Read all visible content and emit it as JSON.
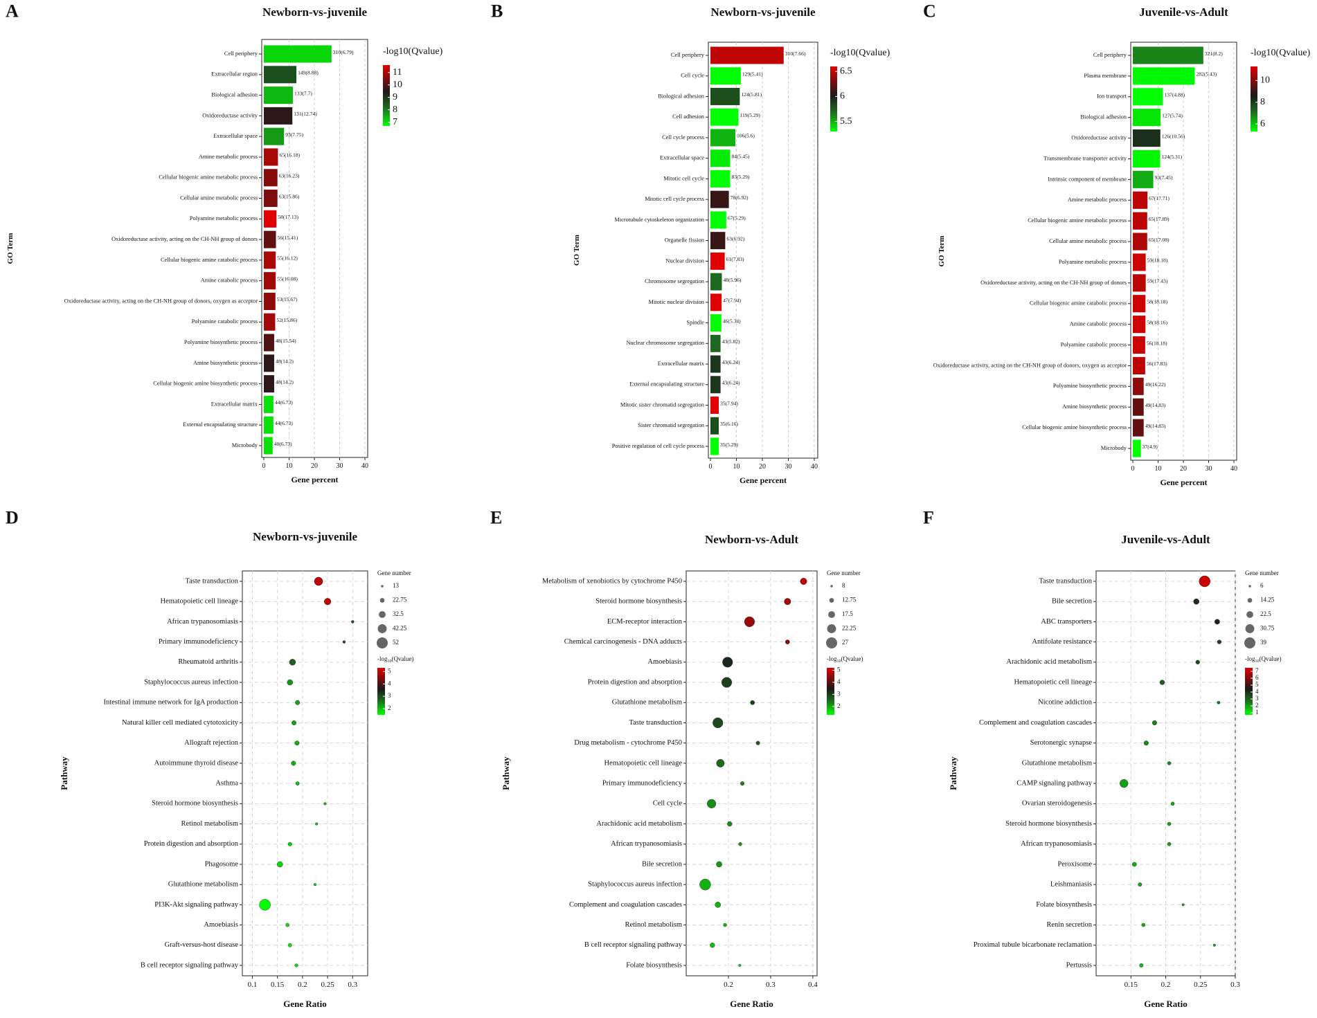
{
  "gradient_colors": {
    "high": "#e00000",
    "mid": "#1a1a1a",
    "mid2": "#1f6a1f",
    "low": "#00ff00"
  },
  "axis_common": {
    "bar_xlabel": "Gene percent",
    "bar_ylabel": "GO Term",
    "dot_xlabel": "Gene Ratio",
    "dot_ylabel": "Pathway",
    "size_legend_title": "Gene number"
  },
  "chart_data": [
    {
      "type": "bar",
      "panel_label": "A",
      "title": "Newborn-vs-juvenile",
      "xlim": [
        0,
        40
      ],
      "xticks": [
        "0",
        "10",
        "20",
        "30",
        "40"
      ],
      "legend_title": "-log10(Qvalue)",
      "qlim": [
        6.7,
        11.6
      ],
      "legend_ticks": [
        {
          "v": 11,
          "t": "11"
        },
        {
          "v": 10,
          "t": "10"
        },
        {
          "v": 9,
          "t": "9"
        },
        {
          "v": 8,
          "t": "8"
        },
        {
          "v": 7,
          "t": "7"
        }
      ],
      "categories": [
        "Cell periphery",
        "Extracellular region",
        "Biological adhesion",
        "Oxidoreductase activity",
        "Extracellular space",
        "Amine metabolic process",
        "Cellular biogenic amine metabolic process",
        "Cellular amine metabolic process",
        "Polyamine metabolic process",
        "Oxidoreductase activity, acting on the CH-NH group of donors",
        "Cellular biogenic amine catabolic process",
        "Amine catabolic process",
        "Oxidoreductase activity, acting on the CH-NH group of donors, oxygen as acceptor",
        "Polyamine catabolic process",
        "Polyamine biosynthetic process",
        "Amine biosynthetic process",
        "Cellular biogenic amine biosynthetic process",
        "Extracellular matrix",
        "External encapsulating structure",
        "Microbody"
      ],
      "values": [
        26.8,
        12.9,
        11.5,
        11.3,
        8.0,
        5.6,
        5.4,
        5.4,
        5.0,
        4.8,
        4.7,
        4.7,
        4.6,
        4.5,
        4.1,
        4.1,
        4.1,
        3.8,
        3.8,
        3.5
      ],
      "labels": [
        "310(6.79)",
        "149(8.88)",
        "133(7.7)",
        "131(12.74)",
        "93(7.75)",
        "65(16.18)",
        "63(16.23)",
        "63(15.86)",
        "58(17.13)",
        "56(15.41)",
        "55(16.12)",
        "55(16.08)",
        "53(15.67)",
        "52(15.86)",
        "48(15.54)",
        "48(14.2)",
        "48(14.2)",
        "44(6.73)",
        "44(6.73)",
        "40(6.73)"
      ],
      "qvalues": [
        7.1,
        8.6,
        7.4,
        9.6,
        7.7,
        11.0,
        10.6,
        10.5,
        11.6,
        10.2,
        11.0,
        10.9,
        10.7,
        10.9,
        10.0,
        9.6,
        9.6,
        7.0,
        7.0,
        7.0
      ]
    },
    {
      "type": "bar",
      "panel_label": "B",
      "title": "Newborn-vs-juvenile",
      "xlim": [
        0,
        40
      ],
      "xticks": [
        "0",
        "10",
        "20",
        "30",
        "40"
      ],
      "legend_title": "-log10(Qvalue)",
      "qlim": [
        5.3,
        6.6
      ],
      "legend_ticks": [
        {
          "v": 6.5,
          "t": "6.5"
        },
        {
          "v": 6,
          "t": "6"
        },
        {
          "v": 5.5,
          "t": "5.5"
        }
      ],
      "categories": [
        "Cell periphery",
        "Cell cycle",
        "Biological adhesion",
        "Cell adhesion",
        "Cell cycle process",
        "Extracellular space",
        "Mitotic cell cycle",
        "Mitotic cell cycle process",
        "Microtubule cytoskeleton organization",
        "Organelle fission",
        "Nuclear division",
        "Chromosome segregation",
        "Mitotic nuclear division",
        "Spindle",
        "Nuclear chromosome segregation",
        "Extracellular matrix",
        "External encapsulating structure",
        "Mitotic sister chromatid segregation",
        "Sister chromatid segregation",
        "Positive regulation of cell cycle process"
      ],
      "values": [
        28.2,
        11.7,
        11.3,
        10.8,
        9.6,
        7.6,
        7.6,
        7.1,
        6.1,
        5.7,
        5.5,
        4.4,
        4.3,
        4.2,
        3.9,
        3.9,
        3.9,
        3.2,
        3.2,
        3.2
      ],
      "labels": [
        "310(7.66)",
        "129(5.41)",
        "124(5.81)",
        "119(5.29)",
        "106(5.6)",
        "84(5.45)",
        "83(5.29)",
        "78(6.92)",
        "67(5.29)",
        "63(6.92)",
        "61(7.83)",
        "48(5.96)",
        "47(7.94)",
        "46(5.34)",
        "43(5.82)",
        "43(6.24)",
        "43(6.24)",
        "35(7.94)",
        "35(6.16)",
        "35(5.29)"
      ],
      "qvalues": [
        6.5,
        5.3,
        5.8,
        5.3,
        5.5,
        5.35,
        5.3,
        6.1,
        5.3,
        6.1,
        6.6,
        5.7,
        6.6,
        5.3,
        5.7,
        5.9,
        5.9,
        6.6,
        5.8,
        5.3
      ]
    },
    {
      "type": "bar",
      "panel_label": "C",
      "title": "Juvenile-vs-Adult",
      "xlim": [
        0,
        40
      ],
      "xticks": [
        "0",
        "10",
        "20",
        "30",
        "40"
      ],
      "legend_title": "-log10(Qvalue)",
      "qlim": [
        5.3,
        11.3
      ],
      "legend_ticks": [
        {
          "v": 10,
          "t": "10"
        },
        {
          "v": 8,
          "t": "8"
        },
        {
          "v": 6,
          "t": "6"
        }
      ],
      "categories": [
        "Cell periphery",
        "Plasma membrane",
        "Ion transport",
        "Biological adhesion",
        "Oxidoreductase activity",
        "Transmembrane transporter activity",
        "Intrinsic component of membrane",
        "Amine metabolic process",
        "Cellular biogenic amine metabolic process",
        "Cellular amine metabolic process",
        "Polyamine metabolic process",
        "Oxidoreductase activity, acting on the CH-NH group of donors",
        "Cellular biogenic amine catabolic process",
        "Amine catabolic process",
        "Polyamine catabolic process",
        "Oxidoreductase activity, acting on the CH-NH group of donors, oxygen as acceptor",
        "Polyamine biosynthetic process",
        "Amine biosynthetic process",
        "Cellular biogenic amine biosynthetic process",
        "Microbody"
      ],
      "values": [
        27.9,
        24.5,
        11.9,
        11.0,
        10.9,
        10.8,
        8.1,
        5.8,
        5.7,
        5.7,
        5.1,
        5.1,
        5.0,
        5.0,
        4.9,
        4.9,
        4.3,
        4.3,
        4.3,
        3.2
      ],
      "labels": [
        "321(8.2)",
        "282(5.43)",
        "137(4.88)",
        "127(5.74)",
        "126(10.56)",
        "124(5.31)",
        "93(7.45)",
        "67(17.71)",
        "65(17.89)",
        "65(17.08)",
        "59(18.18)",
        "59(17.43)",
        "58(18.18)",
        "58(18.16)",
        "56(18.18)",
        "56(17.83)",
        "49(16.22)",
        "49(14.83)",
        "49(14.83)",
        "37(4.9)"
      ],
      "qvalues": [
        6.8,
        5.4,
        5.3,
        5.6,
        8.2,
        5.4,
        6.3,
        10.8,
        10.8,
        10.6,
        11.0,
        10.8,
        11.0,
        11.0,
        11.0,
        10.8,
        10.2,
        9.6,
        9.6,
        5.3
      ]
    },
    {
      "type": "scatter",
      "panel_label": "D",
      "title": "Newborn-vs-juvenile",
      "xlim": [
        0.08,
        0.33
      ],
      "xticks": [
        0.1,
        0.15,
        0.2,
        0.25,
        0.3
      ],
      "xtick_labels": [
        "0.1",
        "0.15",
        "0.2",
        "0.25",
        "0.3"
      ],
      "size_legend": [
        "13",
        "22.75",
        "32.5",
        "42.25",
        "52"
      ],
      "size_range": [
        13,
        52
      ],
      "qlim": [
        1.5,
        5.3
      ],
      "q_legend_ticks": [
        {
          "v": 5,
          "t": "5"
        },
        {
          "v": 4,
          "t": "4"
        },
        {
          "v": 3,
          "t": "3"
        },
        {
          "v": 2,
          "t": "2"
        }
      ],
      "categories": [
        "Taste transduction",
        "Hematopoietic cell lineage",
        "African trypanosomiasis",
        "Primary immunodeficiency",
        "Rheumatoid arthritis",
        "Staphylococcus aureus infection",
        "Intestinal immune network for IgA production",
        "Natural killer cell mediated cytotoxicity",
        "Allograft rejection",
        "Autoimmune thyroid disease",
        "Asthma",
        "Steroid hormone biosynthesis",
        "Retinol metabolism",
        "Protein digestion and absorption",
        "Phagosome",
        "Glutathione metabolism",
        "PI3K-Akt signaling pathway",
        "Amoebiasis",
        "Graft-versus-host disease",
        "B cell receptor signaling pathway"
      ],
      "x": [
        0.232,
        0.25,
        0.3,
        0.283,
        0.18,
        0.175,
        0.19,
        0.183,
        0.189,
        0.182,
        0.19,
        0.245,
        0.228,
        0.175,
        0.155,
        0.225,
        0.125,
        0.17,
        0.175,
        0.188
      ],
      "size": [
        40,
        32,
        14,
        14,
        30,
        27,
        22,
        22,
        22,
        22,
        18,
        13,
        13,
        19,
        27,
        13,
        52,
        18,
        18,
        16
      ],
      "q": [
        5.0,
        5.0,
        3.0,
        3.0,
        2.8,
        2.3,
        2.2,
        2.2,
        2.1,
        2.1,
        2.0,
        2.0,
        2.0,
        1.9,
        1.8,
        1.8,
        1.5,
        1.7,
        1.7,
        1.7
      ]
    },
    {
      "type": "scatter",
      "panel_label": "E",
      "title": "Newborn-vs-Adult",
      "xlim": [
        0.1,
        0.41
      ],
      "xticks": [
        0.2,
        0.3,
        0.4
      ],
      "xtick_labels": [
        "0.2",
        "0.3",
        "0.4"
      ],
      "size_legend": [
        "8",
        "12.75",
        "17.5",
        "22.25",
        "27"
      ],
      "size_range": [
        8,
        27
      ],
      "qlim": [
        1.3,
        5.2
      ],
      "q_legend_ticks": [
        {
          "v": 5,
          "t": "5"
        },
        {
          "v": 4,
          "t": "4"
        },
        {
          "v": 3,
          "t": "3"
        },
        {
          "v": 2,
          "t": "2"
        }
      ],
      "categories": [
        "Metabolism of xenobiotics by cytochrome P450",
        "Steroid hormone biosynthesis",
        "ECM-receptor interaction",
        "Chemical carcinogenesis - DNA adducts",
        "Amoebiasis",
        "Protein digestion and absorption",
        "Glutathione metabolism",
        "Taste transduction",
        "Drug metabolism - cytochrome P450",
        "Hematopoietic cell lineage",
        "Primary immunodeficiency",
        "Cell cycle",
        "Arachidonic acid metabolism",
        "African trypanosomiasis",
        "Bile secretion",
        "Staphylococcus aureus infection",
        "Complement and coagulation cascades",
        "Retinol metabolism",
        "B cell receptor signaling pathway",
        "Folate biosynthesis"
      ],
      "x": [
        0.378,
        0.34,
        0.25,
        0.34,
        0.198,
        0.196,
        0.257,
        0.175,
        0.27,
        0.181,
        0.233,
        0.16,
        0.203,
        0.228,
        0.178,
        0.145,
        0.175,
        0.192,
        0.162,
        0.227
      ],
      "size": [
        17,
        17,
        25,
        12,
        25,
        25,
        12,
        25,
        11,
        20,
        11,
        22,
        13,
        10,
        15,
        27,
        15,
        10,
        13,
        8
      ],
      "q": [
        4.9,
        4.7,
        4.6,
        4.5,
        3.3,
        3.0,
        3.0,
        2.9,
        2.7,
        2.5,
        2.3,
        2.2,
        2.2,
        2.1,
        2.1,
        1.9,
        1.9,
        1.8,
        1.8,
        1.6
      ]
    },
    {
      "type": "scatter",
      "panel_label": "F",
      "title": "Juvenile-vs-Adult",
      "xlim": [
        0.1,
        0.3
      ],
      "xticks": [
        0.15,
        0.2,
        0.25,
        0.3
      ],
      "xtick_labels": [
        "0.15",
        "0.2",
        "0.25",
        "0.3"
      ],
      "size_legend": [
        "6",
        "14.25",
        "22.5",
        "30.75",
        "39"
      ],
      "size_range": [
        6,
        39
      ],
      "qlim": [
        0.7,
        7.5
      ],
      "q_legend_ticks": [
        {
          "v": 7,
          "t": "7"
        },
        {
          "v": 6,
          "t": "6"
        },
        {
          "v": 5,
          "t": "5"
        },
        {
          "v": 4,
          "t": "4"
        },
        {
          "v": 3,
          "t": "3"
        },
        {
          "v": 2,
          "t": "2"
        },
        {
          "v": 1,
          "t": "1"
        }
      ],
      "categories": [
        "Taste transduction",
        "Bile secretion",
        "ABC transporters",
        "Antifolate resistance",
        "Arachidonic acid metabolism",
        "Hematopoietic cell lineage",
        "Nicotine addiction",
        "Complement and coagulation cascades",
        "Serotonergic synapse",
        "Glutathione metabolism",
        "CAMP signaling pathway",
        "Ovarian steroidogenesis",
        "Steroid hormone biosynthesis",
        "African trypanosomiasis",
        "Peroxisome",
        "Leishmaniasis",
        "Folate biosynthesis",
        "Renin secretion",
        "Proximal tubule bicarbonate reclamation",
        "Pertussis"
      ],
      "x": [
        0.256,
        0.244,
        0.274,
        0.277,
        0.246,
        0.195,
        0.276,
        0.184,
        0.172,
        0.205,
        0.14,
        0.21,
        0.205,
        0.205,
        0.155,
        0.163,
        0.225,
        0.168,
        0.27,
        0.165
      ],
      "size": [
        39,
        18,
        16,
        12,
        12,
        15,
        8,
        14,
        14,
        10,
        28,
        10,
        10,
        10,
        13,
        11,
        6,
        10,
        6,
        11
      ],
      "q": [
        7.2,
        4.0,
        4.2,
        3.5,
        3.4,
        3.0,
        2.5,
        2.4,
        2.3,
        2.2,
        2.0,
        1.9,
        1.9,
        1.9,
        1.8,
        1.8,
        1.7,
        1.7,
        1.7,
        1.6
      ]
    }
  ]
}
